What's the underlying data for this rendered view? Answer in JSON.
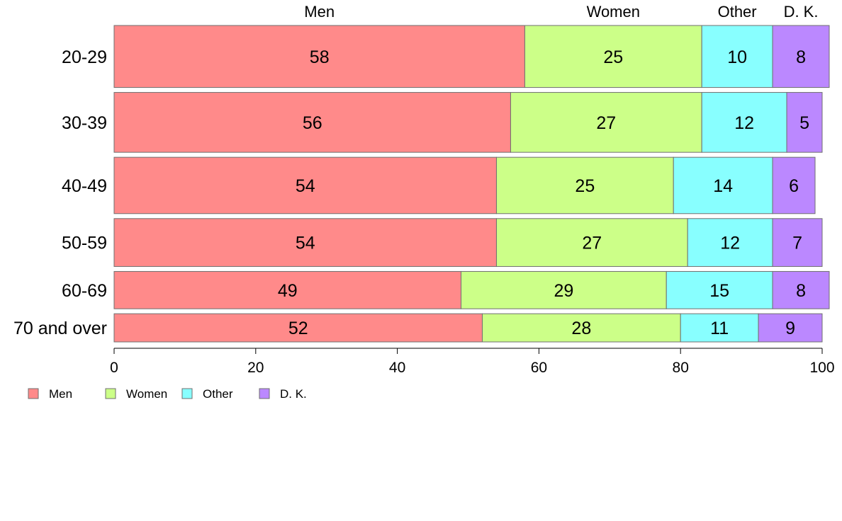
{
  "chart_data": {
    "type": "bar",
    "orientation": "horizontal",
    "stacked": true,
    "title": "",
    "xlabel": "",
    "ylabel": "",
    "xlim": [
      0,
      100
    ],
    "xticks": [
      "0",
      "20",
      "40",
      "60",
      "80",
      "100"
    ],
    "categories": [
      "20-29",
      "30-39",
      "40-49",
      "50-59",
      "60-69",
      "70 and over"
    ],
    "bar_weights": [
      88,
      85,
      80,
      68,
      53,
      40
    ],
    "series": [
      {
        "name": "Men",
        "color": "#ff8a8a",
        "values": [
          58,
          56,
          54,
          54,
          49,
          52
        ]
      },
      {
        "name": "Women",
        "color": "#ccff88",
        "values": [
          25,
          27,
          25,
          27,
          29,
          28
        ]
      },
      {
        "name": "Other",
        "color": "#88ffff",
        "values": [
          10,
          12,
          14,
          12,
          15,
          11
        ]
      },
      {
        "name": "D. K.",
        "color": "#bb88ff",
        "values": [
          8,
          5,
          6,
          7,
          8,
          9
        ]
      }
    ],
    "top_labels": [
      "Men",
      "Women",
      "Other",
      "D. K."
    ],
    "legend_position": "bottom-left",
    "grid": false
  }
}
